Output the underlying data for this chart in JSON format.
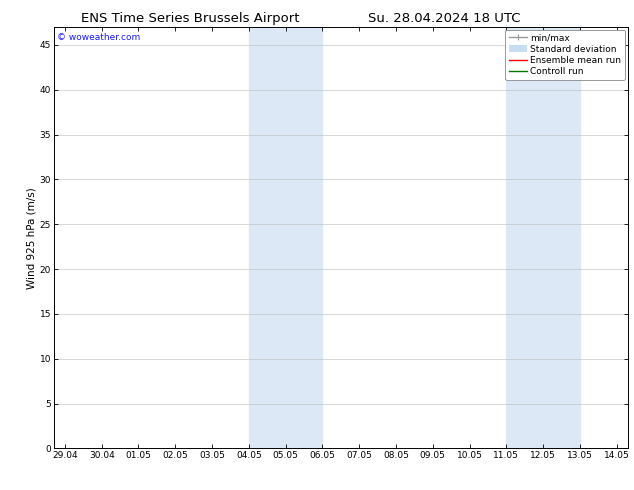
{
  "title_left": "ENS Time Series Brussels Airport",
  "title_right": "Su. 28.04.2024 18 UTC",
  "ylabel": "Wind 925 hPa (m/s)",
  "watermark": "© woweather.com",
  "x_tick_labels": [
    "29.04",
    "30.04",
    "01.05",
    "02.05",
    "03.05",
    "04.05",
    "05.05",
    "06.05",
    "07.05",
    "08.05",
    "09.05",
    "10.05",
    "11.05",
    "12.05",
    "13.05",
    "14.05"
  ],
  "x_tick_positions": [
    0,
    1,
    2,
    3,
    4,
    5,
    6,
    7,
    8,
    9,
    10,
    11,
    12,
    13,
    14,
    15
  ],
  "ylim": [
    0,
    47
  ],
  "yticks": [
    0,
    5,
    10,
    15,
    20,
    25,
    30,
    35,
    40,
    45
  ],
  "bg_color": "#ffffff",
  "plot_bg_color": "#ffffff",
  "shaded_bands": [
    {
      "x_start": 5,
      "x_end": 7,
      "color": "#dce8f5"
    },
    {
      "x_start": 12,
      "x_end": 14,
      "color": "#dce8f5"
    }
  ],
  "legend_entries": [
    {
      "label": "min/max",
      "color": "#999999",
      "lw": 1.0
    },
    {
      "label": "Standard deviation",
      "color": "#c8ddf0",
      "lw": 6
    },
    {
      "label": "Ensemble mean run",
      "color": "#ff0000",
      "lw": 1.0
    },
    {
      "label": "Controll run",
      "color": "#007700",
      "lw": 1.0
    }
  ],
  "watermark_color": "#1a1aff",
  "title_fontsize": 9.5,
  "tick_label_fontsize": 6.5,
  "ylabel_fontsize": 7.5,
  "legend_fontsize": 6.5
}
